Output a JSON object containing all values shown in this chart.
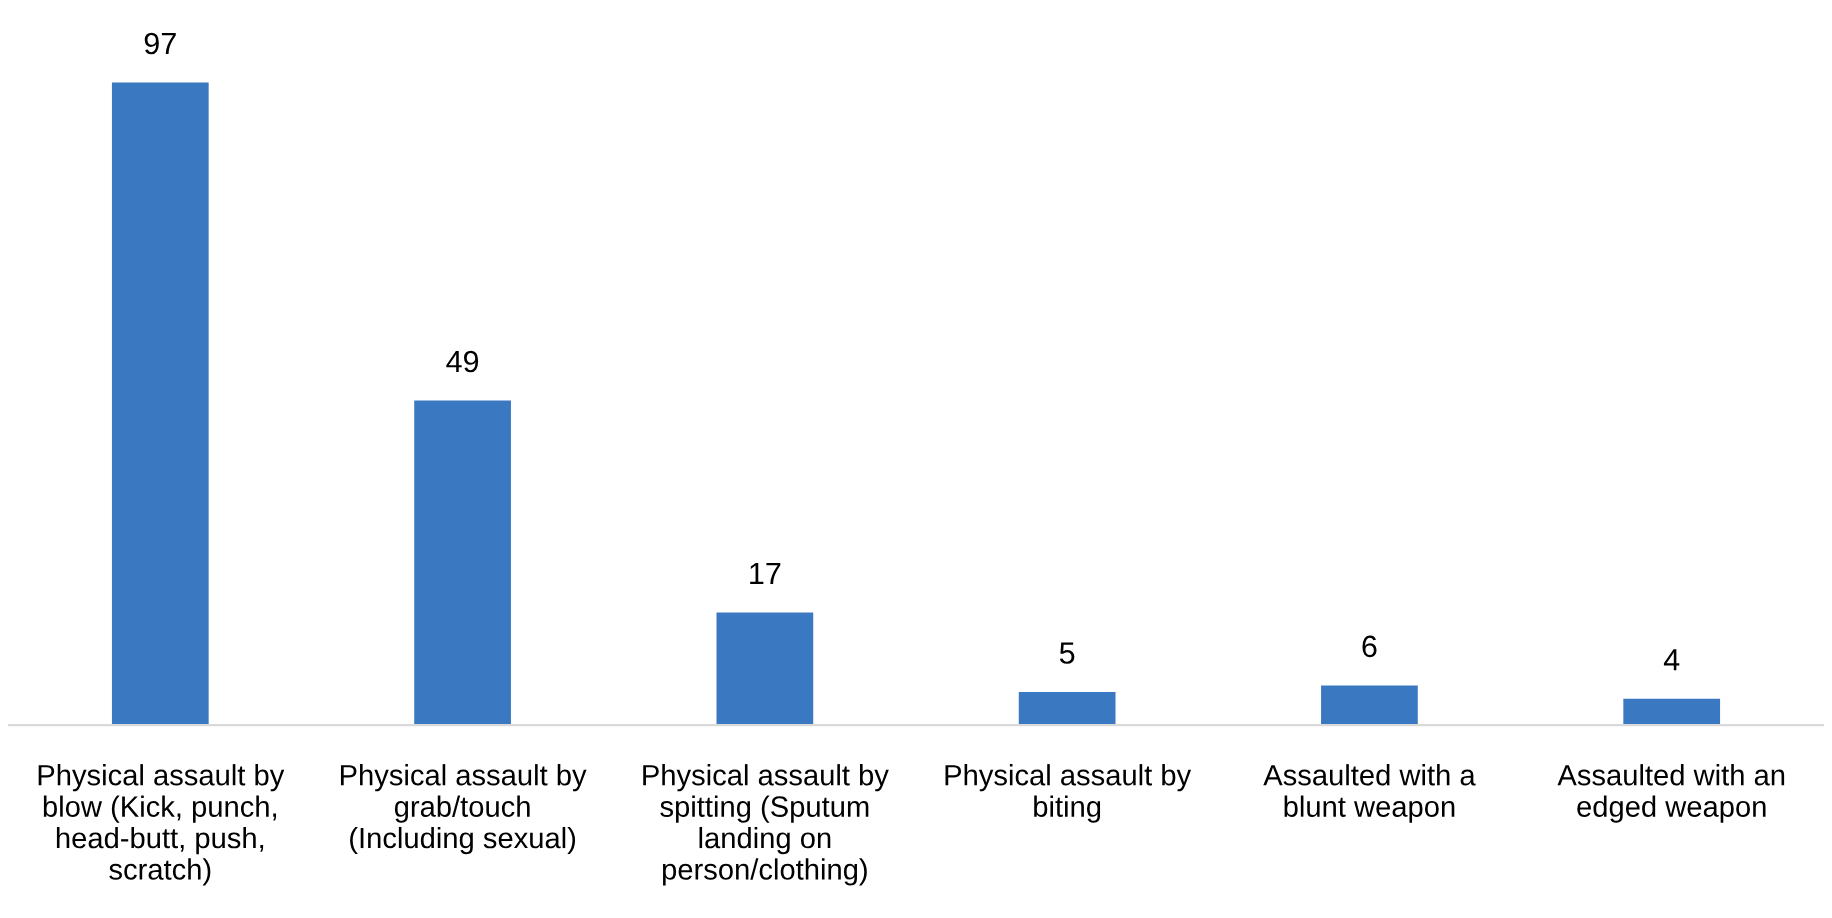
{
  "chart_data": {
    "type": "bar",
    "categories": [
      "Physical assault by blow (Kick, punch, head-butt, push, scratch)",
      "Physical assault by grab/touch (Including sexual)",
      "Physical assault by spitting (Sputum landing on person/clothing)",
      "Physical assault by biting",
      "Assaulted with a blunt weapon",
      "Assaulted with an edged weapon"
    ],
    "values": [
      97,
      49,
      17,
      5,
      6,
      4
    ],
    "color": "#3a78c2",
    "data_labels": true,
    "grid": false,
    "legend": false
  }
}
